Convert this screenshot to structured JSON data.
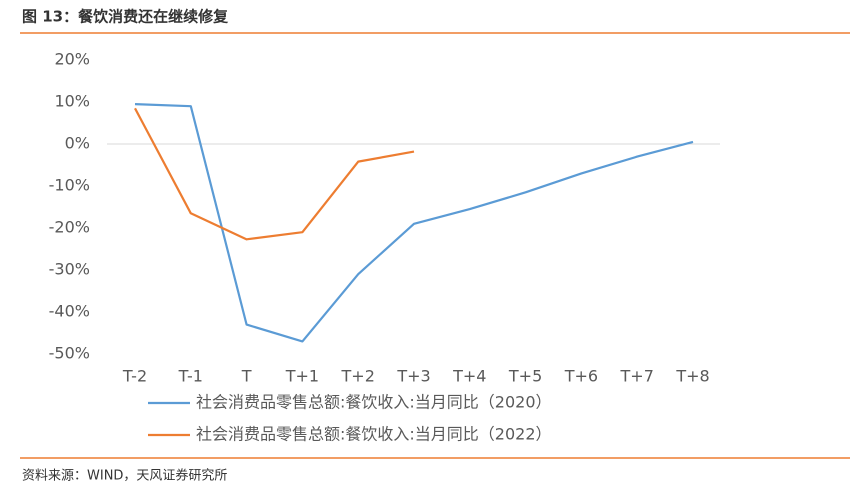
{
  "chart_data": {
    "type": "line",
    "title": "图 13：餐饮消费还在继续修复",
    "source": "资料来源：WIND，天风证券研究所",
    "categories": [
      "T-2",
      "T-1",
      "T",
      "T+1",
      "T+2",
      "T+3",
      "T+4",
      "T+5",
      "T+6",
      "T+7",
      "T+8"
    ],
    "series": [
      {
        "name": "社会消费品零售总额:餐饮收入:当月同比（2020）",
        "color": "#5b9bd5",
        "values": [
          9.5,
          9,
          -43,
          -47,
          -31,
          -19,
          -15.5,
          -11.5,
          -7,
          -3,
          0.5
        ]
      },
      {
        "name": "社会消费品零售总额:餐饮收入:当月同比（2022）",
        "color": "#ed7d31",
        "values": [
          8.5,
          -16.5,
          -22.7,
          -21,
          -4.2,
          -1.8,
          null,
          null,
          null,
          null,
          null
        ]
      }
    ],
    "ylim": [
      -50,
      20
    ],
    "yticks": [
      {
        "value": 20,
        "label": "20%"
      },
      {
        "value": 10,
        "label": "10%"
      },
      {
        "value": 0,
        "label": "0%"
      },
      {
        "value": -10,
        "label": "-10%"
      },
      {
        "value": -20,
        "label": "-20%"
      },
      {
        "value": -30,
        "label": "-30%"
      },
      {
        "value": -40,
        "label": "-40%"
      },
      {
        "value": -50,
        "label": "-50%"
      }
    ],
    "grid": false
  }
}
